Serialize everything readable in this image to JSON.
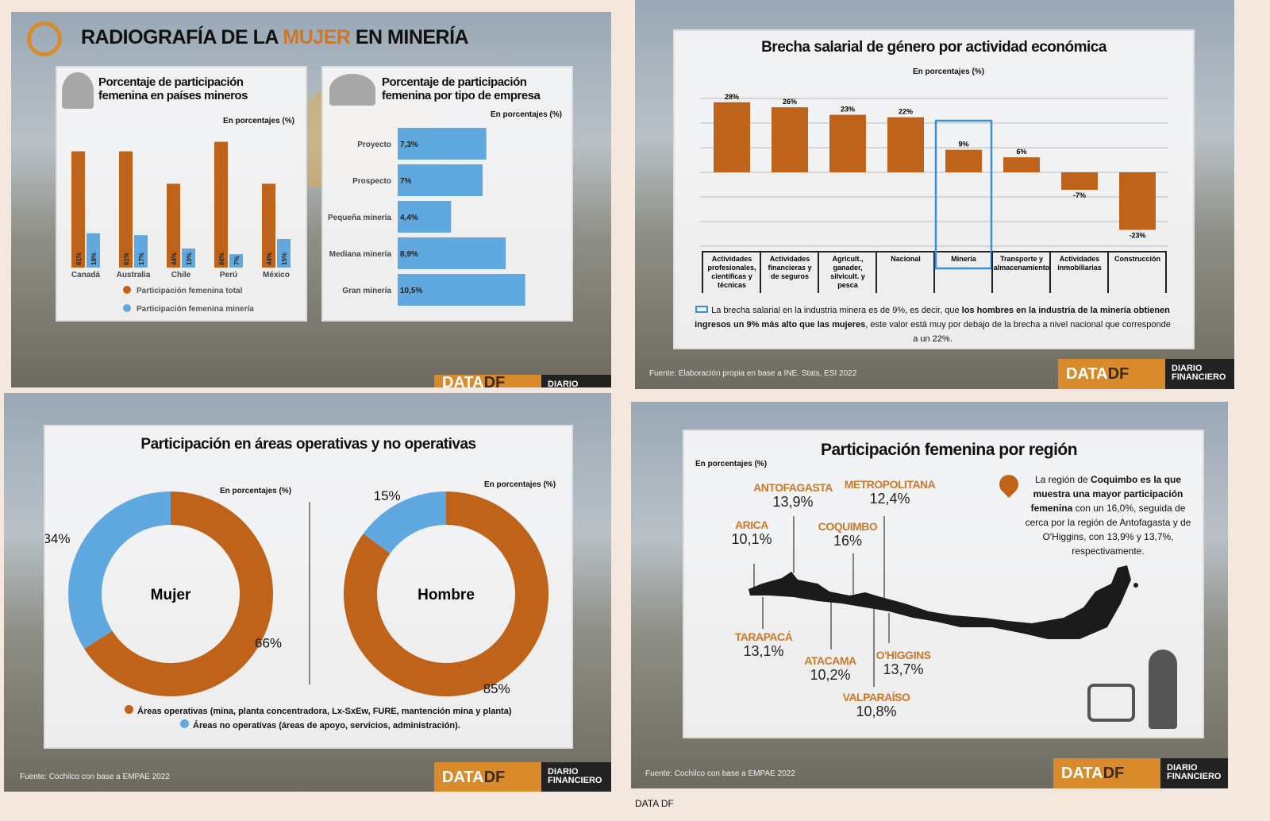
{
  "panel1": {
    "title_pre": "RADIOGRAFÍA DE LA ",
    "title_hl": "MUJER",
    "title_post": " EN MINERÍA",
    "chart_data": [
      {
        "type": "bar",
        "title": "Porcentaje de participación femenina en países mineros",
        "unit_label": "En porcentajes (%)",
        "categories": [
          "Canadá",
          "Australia",
          "Chile",
          "Perú",
          "México"
        ],
        "series": [
          {
            "name": "Participación femenina total",
            "color": "#c0631a",
            "values": [
              61,
              61,
              44,
              66,
              44
            ]
          },
          {
            "name": "Participación femenina minería",
            "color": "#5fa8e0",
            "values": [
              18,
              17,
              10,
              7,
              15
            ]
          }
        ]
      },
      {
        "type": "bar",
        "orientation": "horizontal",
        "title": "Porcentaje de participación femenina por tipo de empresa",
        "unit_label": "En porcentajes (%)",
        "categories": [
          "Proyecto",
          "Prospecto",
          "Pequeña minería",
          "Mediana minería",
          "Gran minería"
        ],
        "values": [
          7.3,
          7,
          4.4,
          8.9,
          10.5
        ],
        "labels": [
          "7,3%",
          "7%",
          "4,4%",
          "8,9%",
          "10,5%"
        ],
        "color": "#5fa8e0"
      }
    ],
    "logo_a": "DATA",
    "logo_b": "DF",
    "logo_c": "DIARIO"
  },
  "panel2": {
    "chart_data": {
      "type": "bar",
      "title": "Brecha salarial de género por actividad económica",
      "unit_label": "En porcentajes (%)",
      "categories": [
        "Actividades profesionales, científicas y técnicas",
        "Actividades financieras y de seguros",
        "Agricult., ganader, silvicult. y pesca",
        "Nacional",
        "Minería",
        "Transporte y almacenamiento",
        "Actividades inmobiliarias",
        "Construcción"
      ],
      "values": [
        28,
        26,
        23,
        22,
        9,
        6,
        -7,
        -23
      ],
      "labels": [
        "28%",
        "26%",
        "23%",
        "22%",
        "9%",
        "6%",
        "-7%",
        "-23%"
      ],
      "color": "#c0631a",
      "highlight": "Minería",
      "highlight_color": "#3b8fd6"
    },
    "note_a": "La brecha salarial en la industria minera es de 9%, es decir, que ",
    "note_b": "los hombres en la industria de la minería obtienen ingresos un 9% más alto que las mujeres",
    "note_c": ", este valor está muy por debajo de la brecha a nivel nacional que corresponde a un 22%.",
    "source": "Fuente: Elaboración propia en base a INE. Stats, ESI 2022",
    "logo_a": "DATA",
    "logo_b": "DF",
    "logo_c": "DIARIO FINANCIERO"
  },
  "panel3": {
    "chart_data": [
      {
        "type": "pie",
        "title": "Participación en áreas operativas y no operativas",
        "center_label": "Mujer",
        "unit_label": "En porcentajes (%)",
        "values": [
          66,
          34
        ],
        "labels": [
          "66%",
          "34%"
        ]
      },
      {
        "type": "pie",
        "center_label": "Hombre",
        "unit_label": "En porcentajes (%)",
        "values": [
          85,
          15
        ],
        "labels": [
          "85%",
          "15%"
        ]
      }
    ],
    "legend": [
      {
        "label": "Áreas operativas (mina, planta concentradora, Lx-SxEw, FURE, mantención mina y planta)",
        "color": "#c0631a"
      },
      {
        "label": "Áreas no operativas (áreas de apoyo, servicios, administración).",
        "color": "#5fa8e0"
      }
    ],
    "source": "Fuente: Cochilco con base a EMPAE 2022",
    "logo_a": "DATA",
    "logo_b": "DF",
    "logo_c": "DIARIO FINANCIERO"
  },
  "panel4": {
    "title": "Participación femenina por región",
    "unit_label": "En porcentajes (%)",
    "regions": [
      {
        "name": "ANTOFAGASTA",
        "value": "13,9%"
      },
      {
        "name": "METROPOLITANA",
        "value": "12,4%"
      },
      {
        "name": "ARICA",
        "value": "10,1%"
      },
      {
        "name": "COQUIMBO",
        "value": "16%"
      },
      {
        "name": "TARAPACÁ",
        "value": "13,1%"
      },
      {
        "name": "ATACAMA",
        "value": "10,2%"
      },
      {
        "name": "O'HIGGINS",
        "value": "13,7%"
      },
      {
        "name": "VALPARAÍSO",
        "value": "10,8%"
      }
    ],
    "note_a": "La región de ",
    "note_b": "Coquimbo es la que muestra una mayor participación femenina",
    "note_c": " con un 16,0%, seguida de cerca por la región de Antofagasta y de O'Higgins, con 13,9% y 13,7%, respectivamente.",
    "source": "Fuente: Cochilco con base a EMPAE 2022",
    "logo_a": "DATA",
    "logo_b": "DF",
    "logo_c": "DIARIO FINANCIERO"
  },
  "bottom_caption": "DATA DF"
}
